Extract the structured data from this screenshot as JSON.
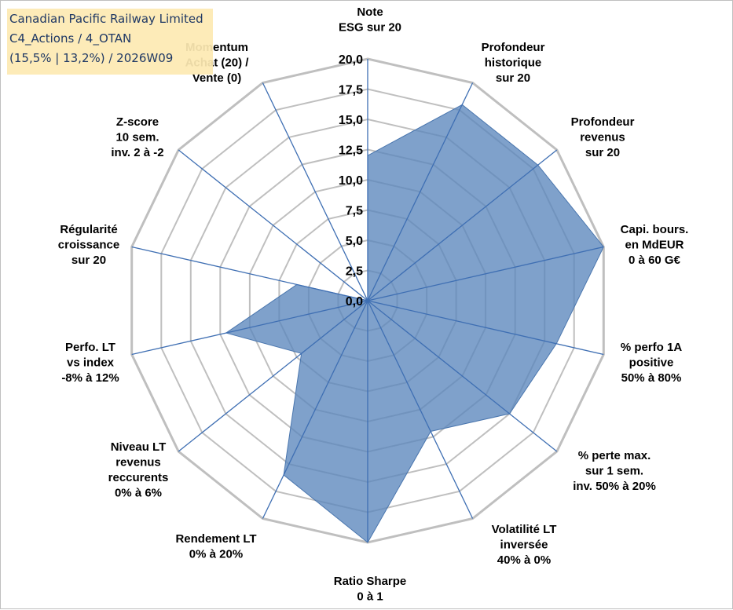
{
  "title_box": {
    "lines": [
      "Canadian Pacific Railway Limited",
      "C4_Actions / 4_OTAN",
      "(15,5% | 13,2%) / 2026W09"
    ]
  },
  "chart_data": {
    "type": "radar",
    "title": "Canadian Pacific Railway Limited",
    "range": [
      0,
      20
    ],
    "tick_step": 2.5,
    "tick_labels": [
      "0,0",
      "2,5",
      "5,0",
      "7,5",
      "10,0",
      "12,5",
      "15,0",
      "17,5",
      "20,0"
    ],
    "categories": [
      {
        "lines": [
          "Note",
          "ESG sur 20"
        ]
      },
      {
        "lines": [
          "Profondeur",
          "historique",
          "sur 20"
        ]
      },
      {
        "lines": [
          "Profondeur",
          "revenus",
          "sur 20"
        ]
      },
      {
        "lines": [
          "Capi. bours.",
          "en MdEUR",
          "0 à 60 G€"
        ]
      },
      {
        "lines": [
          "% perfo 1A",
          "positive",
          "50% à 80%"
        ]
      },
      {
        "lines": [
          "% perte max.",
          "sur 1 sem.",
          "inv. 50% à 20%"
        ]
      },
      {
        "lines": [
          "Volatilité LT",
          "inversée",
          "40% à 0%"
        ]
      },
      {
        "lines": [
          "Ratio Sharpe",
          "0 à 1"
        ]
      },
      {
        "lines": [
          "Rendement LT",
          "0% à 20%"
        ]
      },
      {
        "lines": [
          "Niveau LT",
          "revenus",
          "reccurents",
          "0% à 6%"
        ]
      },
      {
        "lines": [
          "Perfo. LT",
          "vs index",
          "-8% à 12%"
        ]
      },
      {
        "lines": [
          "Régularité",
          "croissance",
          "sur 20"
        ]
      },
      {
        "lines": [
          "Z-score",
          "10 sem.",
          "inv. 2 à -2"
        ]
      },
      {
        "lines": [
          "Momentum",
          "Achat (20) /",
          "Vente (0)"
        ]
      }
    ],
    "series": [
      {
        "name": "Canadian Pacific Railway Limited",
        "color": "#5b86bc",
        "values": [
          12,
          18,
          18,
          20,
          16,
          15,
          12,
          20,
          16,
          7,
          12,
          6,
          0,
          0
        ]
      }
    ],
    "grid_color": "#bfbfbf",
    "spoke_color": "#3f6fb3"
  }
}
